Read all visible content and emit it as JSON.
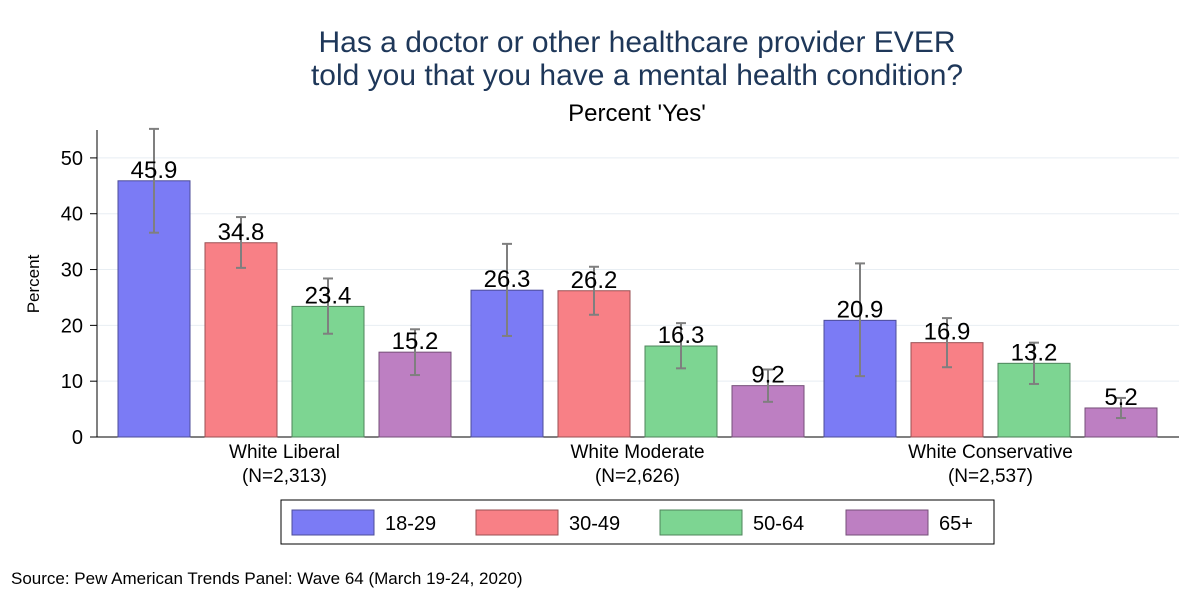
{
  "chart_data": {
    "type": "bar",
    "title": [
      "Has a doctor or other healthcare provider EVER",
      "told you that you have a mental health condition?"
    ],
    "subtitle": "Percent 'Yes'",
    "ylabel": "Percent",
    "ylim": [
      0,
      55
    ],
    "yticks": [
      0,
      10,
      20,
      30,
      40,
      50
    ],
    "grid": true,
    "legend_position": "bottom",
    "categories": [
      {
        "name": "White Liberal",
        "n": "(N=2,313)"
      },
      {
        "name": "White Moderate",
        "n": "(N=2,626)"
      },
      {
        "name": "White Conservative",
        "n": "(N=2,537)"
      }
    ],
    "series": [
      {
        "name": "18-29",
        "color": "#7b7bf5",
        "values": [
          45.9,
          26.3,
          20.9
        ],
        "ci_low": [
          36.6,
          18.1,
          10.9
        ],
        "ci_high": [
          55.2,
          34.6,
          31.1
        ]
      },
      {
        "name": "30-49",
        "color": "#f88086",
        "values": [
          34.8,
          26.2,
          16.9
        ],
        "ci_low": [
          30.3,
          21.9,
          12.5
        ],
        "ci_high": [
          39.4,
          30.5,
          21.3
        ]
      },
      {
        "name": "50-64",
        "color": "#7dd592",
        "values": [
          23.4,
          16.3,
          13.2
        ],
        "ci_low": [
          18.5,
          12.3,
          9.5
        ],
        "ci_high": [
          28.4,
          20.4,
          16.9
        ]
      },
      {
        "name": "65+",
        "color": "#bd7fc2",
        "values": [
          15.2,
          9.2,
          5.2
        ],
        "ci_low": [
          11.1,
          6.3,
          3.4
        ],
        "ci_high": [
          19.3,
          12.1,
          7.0
        ]
      }
    ],
    "source": "Source: Pew American Trends Panel: Wave 64 (March 19-24, 2020)"
  }
}
